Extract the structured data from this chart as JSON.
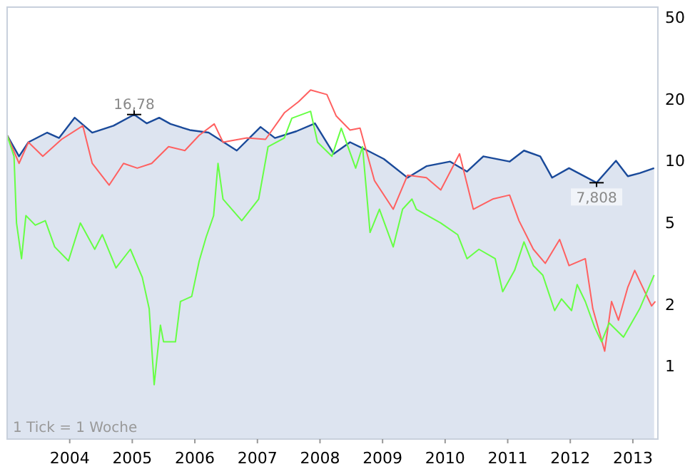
{
  "chart_data": {
    "type": "line",
    "log": "y",
    "grid": false,
    "marker": "none",
    "line_style": "solid",
    "xlim": [
      2003.0,
      2013.4
    ],
    "xticks": [
      2004,
      2005,
      2006,
      2007,
      2008,
      2009,
      2010,
      2011,
      2012,
      2013
    ],
    "ylim": [
      0.44,
      56
    ],
    "yticks": [
      1,
      2,
      5,
      10,
      20,
      50
    ],
    "annotations": [
      {
        "text": "16,78",
        "x": 2005.03,
        "y": 16.78
      },
      {
        "text": "7,808",
        "x": 2012.42,
        "y": 7.808
      },
      "1 Tick = 1 Woche"
    ],
    "series": [
      {
        "type": "area",
        "color": "#1a4a9a",
        "x": [
          2003.0,
          2003.19,
          2003.34,
          2003.64,
          2003.83,
          2004.08,
          2004.36,
          2004.7,
          2005.03,
          2005.23,
          2005.43,
          2005.61,
          2005.92,
          2006.22,
          2006.67,
          2007.05,
          2007.28,
          2007.62,
          2007.92,
          2008.22,
          2008.48,
          2008.76,
          2009.02,
          2009.4,
          2009.7,
          2010.08,
          2010.35,
          2010.61,
          2011.03,
          2011.26,
          2011.52,
          2011.71,
          2011.98,
          2012.42,
          2012.73,
          2012.92,
          2013.11,
          2013.34
        ],
        "values": [
          13.3,
          10.5,
          12.3,
          13.7,
          12.9,
          16.2,
          13.7,
          14.8,
          16.78,
          15.2,
          16.2,
          15.1,
          14.1,
          13.7,
          11.2,
          14.6,
          12.9,
          13.9,
          15.2,
          10.8,
          12.3,
          11.2,
          10.2,
          8.26,
          9.4,
          9.9,
          8.85,
          10.5,
          9.9,
          11.2,
          10.5,
          8.26,
          9.2,
          7.808,
          10.0,
          8.4,
          8.7,
          9.2
        ]
      },
      {
        "color": "#ff6060",
        "x": [
          2003.0,
          2003.19,
          2003.34,
          2003.57,
          2003.87,
          2004.21,
          2004.36,
          2004.63,
          2004.86,
          2005.08,
          2005.31,
          2005.58,
          2005.84,
          2006.07,
          2006.31,
          2006.45,
          2006.83,
          2007.13,
          2007.43,
          2007.66,
          2007.85,
          2008.11,
          2008.26,
          2008.48,
          2008.64,
          2008.87,
          2009.17,
          2009.4,
          2009.7,
          2009.93,
          2010.23,
          2010.45,
          2010.76,
          2011.03,
          2011.18,
          2011.41,
          2011.6,
          2011.83,
          2011.98,
          2012.24,
          2012.36,
          2012.55,
          2012.66,
          2012.77,
          2012.92,
          2013.03,
          2013.19,
          2013.3,
          2013.36
        ],
        "values": [
          13.3,
          9.7,
          12.3,
          10.5,
          12.7,
          14.8,
          9.7,
          7.6,
          9.7,
          9.2,
          9.7,
          11.7,
          11.2,
          13.3,
          15.1,
          12.3,
          12.9,
          12.7,
          17.1,
          19.4,
          22.1,
          21.0,
          16.5,
          14.1,
          14.4,
          8.0,
          5.8,
          8.5,
          8.26,
          7.2,
          10.8,
          5.8,
          6.5,
          6.8,
          5.1,
          3.7,
          3.16,
          4.13,
          3.08,
          3.33,
          1.9,
          1.18,
          2.06,
          1.67,
          2.42,
          2.92,
          2.3,
          1.96,
          2.06
        ]
      },
      {
        "color": "#66ff44",
        "x": [
          2003.0,
          2003.11,
          2003.15,
          2003.23,
          2003.3,
          2003.45,
          2003.61,
          2003.76,
          2003.98,
          2004.17,
          2004.4,
          2004.52,
          2004.74,
          2004.97,
          2005.16,
          2005.27,
          2005.35,
          2005.45,
          2005.5,
          2005.69,
          2005.77,
          2005.95,
          2006.07,
          2006.18,
          2006.3,
          2006.37,
          2006.45,
          2006.75,
          2007.02,
          2007.17,
          2007.43,
          2007.55,
          2007.85,
          2007.96,
          2008.19,
          2008.34,
          2008.57,
          2008.68,
          2008.8,
          2008.95,
          2009.17,
          2009.32,
          2009.47,
          2009.54,
          2009.93,
          2010.2,
          2010.35,
          2010.54,
          2010.8,
          2010.92,
          2011.11,
          2011.26,
          2011.41,
          2011.56,
          2011.75,
          2011.86,
          2012.02,
          2012.11,
          2012.24,
          2012.39,
          2012.5,
          2012.62,
          2012.85,
          2013.11,
          2013.34
        ],
        "values": [
          13.3,
          10.5,
          4.97,
          3.33,
          5.4,
          4.85,
          5.1,
          3.8,
          3.25,
          4.97,
          3.7,
          4.36,
          3.0,
          3.7,
          2.7,
          1.9,
          0.81,
          1.58,
          1.31,
          1.31,
          2.06,
          2.18,
          3.25,
          4.24,
          5.4,
          9.7,
          6.5,
          5.1,
          6.5,
          11.7,
          12.9,
          16.1,
          17.4,
          12.3,
          10.5,
          14.4,
          9.2,
          11.7,
          4.47,
          5.8,
          3.8,
          5.8,
          6.5,
          5.8,
          4.97,
          4.36,
          3.33,
          3.7,
          3.33,
          2.3,
          2.92,
          4.02,
          3.08,
          2.77,
          1.86,
          2.12,
          1.86,
          2.49,
          2.06,
          1.54,
          1.31,
          1.62,
          1.38,
          1.9,
          2.77
        ]
      }
    ]
  }
}
